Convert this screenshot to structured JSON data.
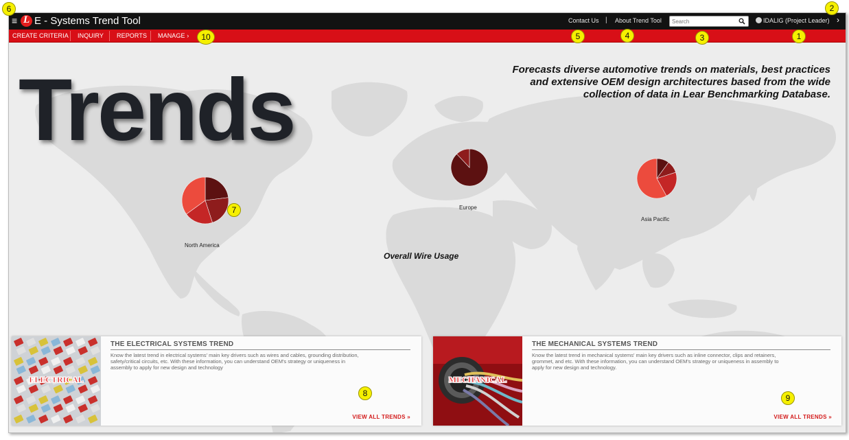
{
  "app": {
    "title": "E - Systems Trend Tool",
    "logo_letter": "L"
  },
  "topbar": {
    "contact_label": "Contact Us",
    "separator": "|",
    "about_label": "About Trend Tool",
    "search_placeholder": "Search",
    "user_label": "IDALIG (Project Leader)",
    "menu_icon": "hamburger-icon",
    "search_icon": "magnifier-icon",
    "user_icon": "user-circle-icon",
    "chevron_icon": "chevron-right-icon"
  },
  "nav": {
    "items": [
      {
        "label": "CREATE CRITERIA"
      },
      {
        "label": "INQUIRY"
      },
      {
        "label": "REPORTS"
      },
      {
        "label": "MANAGE ›"
      }
    ]
  },
  "hero": {
    "title": "Trends",
    "tagline_1": "Forecasts diverse automotive trends on materials, best practices",
    "tagline_2": "and extensive OEM design architectures based from the wide",
    "tagline_3": "collection of data in Lear Benchmarking Database."
  },
  "chart_data": {
    "type": "pie",
    "title": "Overall Wire Usage",
    "charts": [
      {
        "name": "North America",
        "values": [
          23,
          22,
          20,
          35
        ]
      },
      {
        "name": "Europe",
        "values": [
          88,
          12
        ]
      },
      {
        "name": "Asia Pacific",
        "values": [
          10,
          10,
          22,
          58
        ]
      }
    ],
    "colors": [
      "#5c1111",
      "#8e1c1c",
      "#c42626",
      "#ec4b3d"
    ]
  },
  "cards": {
    "electrical": {
      "title": "THE ELECTRICAL SYSTEMS TREND",
      "image_text": "ELECTRICAL",
      "desc_1": "Know the latest trend in electrical systems' main key drivers such as wires and cables, grounding distribution,",
      "desc_2": "safety/critical circuits, etc. With these information, you can understand OEM's strategy or uniqueness in",
      "desc_3": "assembly to apply for new design and technology",
      "link": "VIEW ALL TRENDS »"
    },
    "mechanical": {
      "title": "THE MECHANICAL SYSTEMS TREND",
      "image_text": "MECHANICAL",
      "desc_1": "Know the latest trend in mechanical systems' main key drivers such as inline connector, clips and retainers,",
      "desc_2": "grommet, and etc. With these information, you can understand OEM's strategy or uniqueness in assembly to",
      "desc_3": "apply for new design and technology.",
      "link": "VIEW ALL TRENDS »"
    }
  },
  "callouts": [
    "1",
    "2",
    "3",
    "4",
    "5",
    "6",
    "7",
    "8",
    "9",
    "10"
  ],
  "colors": {
    "nav_red": "#d80f17",
    "topbar": "#121212",
    "link_red": "#d31a1a",
    "callout": "#f6f000"
  }
}
